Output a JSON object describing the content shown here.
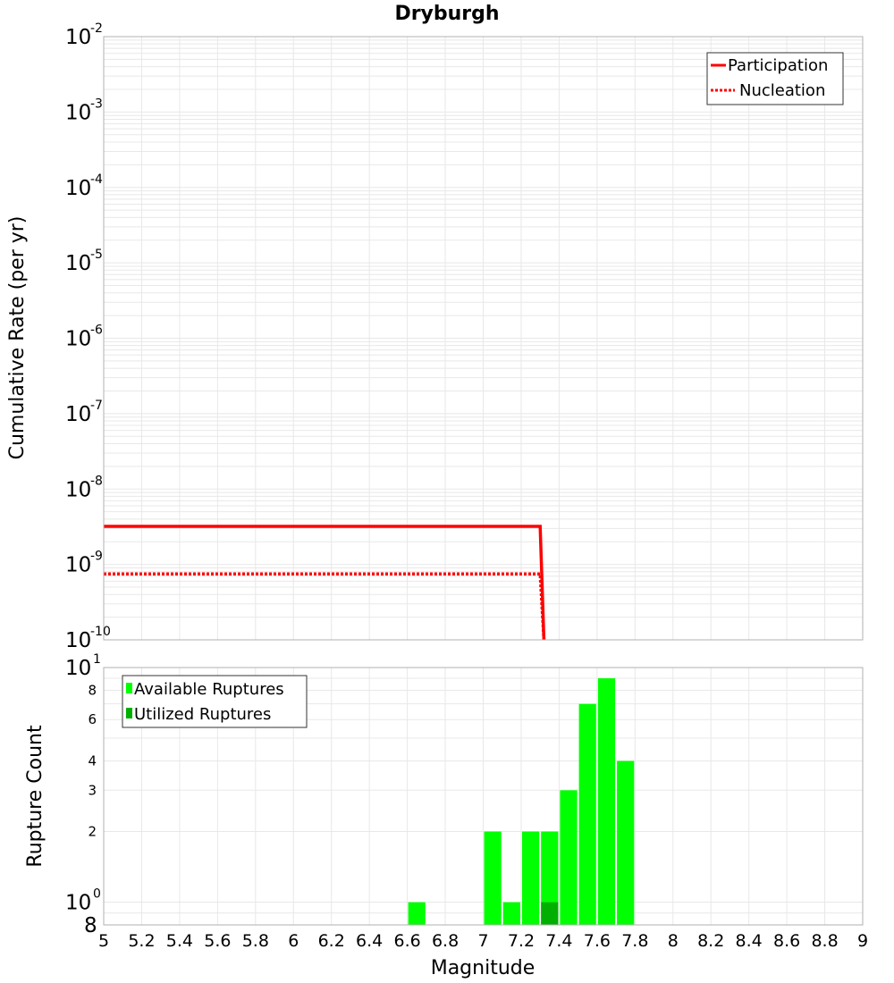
{
  "title": "Dryburgh",
  "colors": {
    "participation": "#ff0000",
    "nucleation": "#ff0000",
    "available": "#00ff00",
    "utilized": "#00b000",
    "grid": "#e8e8e8",
    "frame": "#b0b0b0"
  },
  "chart_data": [
    {
      "type": "line",
      "panel": "top",
      "title": "Dryburgh",
      "xlabel": "Magnitude",
      "ylabel": "Cumulative Rate (per yr)",
      "xlim": [
        5,
        9
      ],
      "ylim": [
        1e-10,
        0.01
      ],
      "y_scale": "log",
      "grid": true,
      "legend_position": "top-right",
      "y_ticks": [
        {
          "base": "10",
          "exp": "-10"
        },
        {
          "base": "10",
          "exp": "-9"
        },
        {
          "base": "10",
          "exp": "-8"
        },
        {
          "base": "10",
          "exp": "-7"
        },
        {
          "base": "10",
          "exp": "-6"
        },
        {
          "base": "10",
          "exp": "-5"
        },
        {
          "base": "10",
          "exp": "-4"
        },
        {
          "base": "10",
          "exp": "-3"
        },
        {
          "base": "10",
          "exp": "-2"
        }
      ],
      "series": [
        {
          "name": "Participation",
          "style": "solid",
          "x": [
            5.0,
            7.3,
            7.32
          ],
          "y": [
            3.2e-09,
            3.2e-09,
            1e-10
          ]
        },
        {
          "name": "Nucleation",
          "style": "dotted",
          "x": [
            5.0,
            7.3,
            7.32
          ],
          "y": [
            7.5e-10,
            7.5e-10,
            1e-10
          ]
        }
      ]
    },
    {
      "type": "bar",
      "panel": "bottom",
      "xlabel": "Magnitude",
      "ylabel": "Rupture Count",
      "xlim": [
        5,
        9
      ],
      "ylim": [
        0.8,
        10
      ],
      "y_scale": "log",
      "grid": true,
      "legend_position": "top-left",
      "x_ticks": [
        "5",
        "5.2",
        "5.4",
        "5.6",
        "5.8",
        "6",
        "6.2",
        "6.4",
        "6.6",
        "6.8",
        "7",
        "7.2",
        "7.4",
        "7.6",
        "7.8",
        "8",
        "8.2",
        "8.4",
        "8.6",
        "8.8",
        "9"
      ],
      "y_ticks_minor": [
        "2",
        "3",
        "4",
        "6",
        "8"
      ],
      "y_ticks_major": [
        {
          "base": "10",
          "exp": "0"
        },
        {
          "base": "10",
          "exp": "1"
        }
      ],
      "y_tick_bottom": "8",
      "bin_width": 0.1,
      "series": [
        {
          "name": "Available Ruptures",
          "x": [
            6.65,
            7.05,
            7.15,
            7.25,
            7.35,
            7.45,
            7.55,
            7.65,
            7.75
          ],
          "values": [
            1,
            2,
            1,
            2,
            2,
            3,
            7,
            9,
            4
          ]
        },
        {
          "name": "Utilized Ruptures",
          "x": [
            7.35
          ],
          "values": [
            1
          ]
        }
      ]
    }
  ]
}
